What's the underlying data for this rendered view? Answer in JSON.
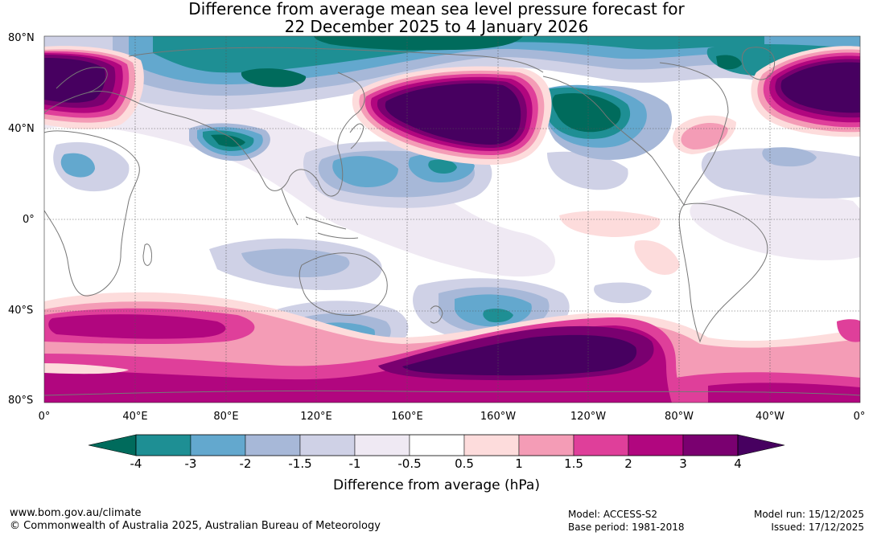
{
  "title": {
    "line1": "Difference from average mean sea level pressure forecast for",
    "line2": "22 December 2025 to 4 January 2026"
  },
  "map": {
    "lat_labels": [
      "80°N",
      "40°N",
      "0°",
      "40°S",
      "80°S"
    ],
    "lon_labels": [
      "0°",
      "40°E",
      "80°E",
      "120°E",
      "160°E",
      "160°W",
      "120°W",
      "80°W",
      "40°W",
      "0°"
    ]
  },
  "colorbar": {
    "label": "Difference from average (hPa)",
    "ticks": [
      "-4",
      "-3",
      "-2",
      "-1.5",
      "-1",
      "-0.5",
      "0.5",
      "1",
      "1.5",
      "2",
      "3",
      "4"
    ],
    "colors": [
      "#006b5c",
      "#1e8f94",
      "#63a8ce",
      "#a7b8d8",
      "#cfd1e6",
      "#efe9f3",
      "#ffffff",
      "#fddcdc",
      "#f49cb6",
      "#df3f9a",
      "#b1067f",
      "#7a0070",
      "#470060"
    ]
  },
  "footer": {
    "url": "www.bom.gov.au/climate",
    "copyright": "© Commonwealth of Australia 2025, Australian Bureau of Meteorology",
    "model": "Model: ACCESS-S2",
    "base_period": "Base period: 1981-2018",
    "model_run": "Model run: 15/12/2025",
    "issued": "Issued: 17/12/2025"
  }
}
